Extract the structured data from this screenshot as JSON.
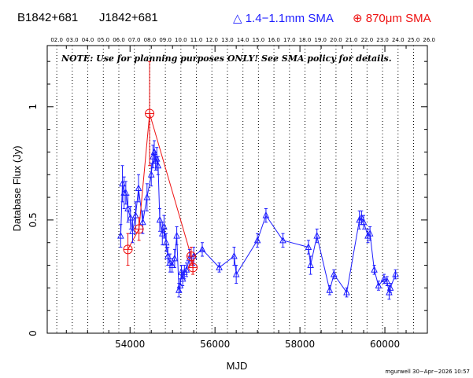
{
  "header": {
    "source_name": "B1842+681",
    "alt_name": "J1842+681",
    "legend_blue": "1.4−1.1mm SMA",
    "legend_red": "870μm SMA"
  },
  "note": "NOTE: Use for planning purposes ONLY! See SMA policy for details.",
  "footer": "mgurwell 30−Apr−2026 10:57",
  "colors": {
    "blue": "#1d1dff",
    "red": "#ee1111",
    "axis": "#000000"
  },
  "chart_data": {
    "type": "scatter",
    "title": "",
    "xlabel": "MJD",
    "ylabel": "Database Flux (Jy)",
    "xlim": [
      52050,
      61000
    ],
    "ylim": [
      0,
      1.27
    ],
    "x_ticks": [
      54000,
      56000,
      58000,
      60000
    ],
    "y_ticks": [
      0,
      0.5,
      1
    ],
    "y_tick_labels": [
      "0",
      "0.5",
      "1"
    ],
    "top_axis_labels": [
      "02.0",
      "03.0",
      "04.0",
      "05.0",
      "06.0",
      "07.0",
      "08.0",
      "09.0",
      "10.0",
      "11.0",
      "12.0",
      "13.0",
      "14.0",
      "15.0",
      "16.0",
      "17.0",
      "18.0",
      "19.0",
      "20.0",
      "21.0",
      "22.0",
      "23.0",
      "24.0",
      "25.0",
      "26.0"
    ],
    "top_axis_mjd": [
      52275,
      52640,
      53005,
      53371,
      53736,
      54101,
      54466,
      54832,
      55197,
      55562,
      55927,
      56293,
      56658,
      57023,
      57388,
      57754,
      58119,
      58484,
      58849,
      59215,
      59580,
      59945,
      60310,
      60676,
      61041
    ],
    "grid": "vertical dotted at year boundaries",
    "series": [
      {
        "name": "1.4−1.1mm SMA",
        "marker": "triangle",
        "x": [
          53780,
          53820,
          53860,
          53900,
          53950,
          54010,
          54060,
          54130,
          54200,
          54300,
          54400,
          54500,
          54540,
          54570,
          54600,
          54630,
          54660,
          54700,
          54760,
          54800,
          54850,
          54890,
          54940,
          54990,
          55050,
          55100,
          55150,
          55180,
          55210,
          55240,
          55280,
          55330,
          55400,
          55500,
          55700,
          56100,
          56450,
          56500,
          57000,
          57200,
          57600,
          58200,
          58250,
          58400,
          58700,
          58800,
          59100,
          59400,
          59450,
          59500,
          59600,
          59650,
          59750,
          59850,
          59980,
          60050,
          60100,
          60130,
          60250
        ],
        "y": [
          0.43,
          0.66,
          0.62,
          0.62,
          0.55,
          0.51,
          0.45,
          0.52,
          0.64,
          0.49,
          0.6,
          0.7,
          0.78,
          0.8,
          0.76,
          0.77,
          0.74,
          0.5,
          0.44,
          0.47,
          0.4,
          0.34,
          0.31,
          0.3,
          0.33,
          0.43,
          0.19,
          0.21,
          0.27,
          0.24,
          0.27,
          0.28,
          0.33,
          0.34,
          0.37,
          0.29,
          0.34,
          0.26,
          0.41,
          0.52,
          0.41,
          0.38,
          0.3,
          0.43,
          0.19,
          0.26,
          0.18,
          0.5,
          0.51,
          0.49,
          0.43,
          0.44,
          0.28,
          0.21,
          0.24,
          0.23,
          0.18,
          0.2,
          0.26
        ],
        "err": [
          0.05,
          0.08,
          0.07,
          0.05,
          0.06,
          0.05,
          0.05,
          0.06,
          0.06,
          0.05,
          0.06,
          0.05,
          0.05,
          0.05,
          0.04,
          0.05,
          0.04,
          0.05,
          0.05,
          0.05,
          0.04,
          0.04,
          0.04,
          0.03,
          0.04,
          0.04,
          0.03,
          0.03,
          0.03,
          0.03,
          0.03,
          0.03,
          0.04,
          0.04,
          0.03,
          0.02,
          0.04,
          0.04,
          0.03,
          0.03,
          0.03,
          0.03,
          0.04,
          0.03,
          0.02,
          0.02,
          0.02,
          0.04,
          0.03,
          0.03,
          0.03,
          0.03,
          0.02,
          0.02,
          0.02,
          0.02,
          0.03,
          0.02,
          0.02
        ]
      },
      {
        "name": "870μm SMA",
        "marker": "circle-plus",
        "x": [
          53950,
          54210,
          54460,
          55440,
          55480
        ],
        "y": [
          0.37,
          0.46,
          0.97,
          0.34,
          0.29
        ],
        "err": [
          0.07,
          0.05,
          0.23,
          0.04,
          0.03
        ]
      }
    ]
  }
}
